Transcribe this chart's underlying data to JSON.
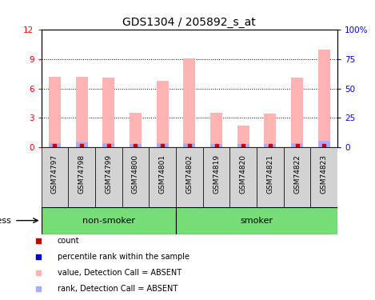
{
  "title": "GDS1304 / 205892_s_at",
  "samples": [
    "GSM74797",
    "GSM74798",
    "GSM74799",
    "GSM74800",
    "GSM74801",
    "GSM74802",
    "GSM74819",
    "GSM74820",
    "GSM74821",
    "GSM74822",
    "GSM74823"
  ],
  "pink_values": [
    7.2,
    7.2,
    7.1,
    3.5,
    6.8,
    9.1,
    3.5,
    2.2,
    3.4,
    7.1,
    10.0
  ],
  "blue_values": [
    0.4,
    0.5,
    0.35,
    0.3,
    0.4,
    0.35,
    0.3,
    0.3,
    0.3,
    0.4,
    0.6
  ],
  "red_values": [
    0.12,
    0.12,
    0.12,
    0.12,
    0.12,
    0.12,
    0.12,
    0.12,
    0.12,
    0.12,
    0.12
  ],
  "ylim": [
    0,
    12
  ],
  "y2lim": [
    0,
    100
  ],
  "yticks": [
    0,
    3,
    6,
    9,
    12
  ],
  "y2ticks": [
    0,
    25,
    50,
    75,
    100
  ],
  "non_smoker_count": 5,
  "smoker_count": 6,
  "group_bg": "#77dd77",
  "tick_bg": "#d3d3d3",
  "pink_color": "#ffb3b3",
  "blue_color": "#aaaaff",
  "red_color": "#cc0000",
  "title_fontsize": 10,
  "legend_items": [
    "count",
    "percentile rank within the sample",
    "value, Detection Call = ABSENT",
    "rank, Detection Call = ABSENT"
  ],
  "legend_marker_colors": [
    "#cc0000",
    "#0000cc",
    "#ffb3b3",
    "#aaaaff"
  ]
}
